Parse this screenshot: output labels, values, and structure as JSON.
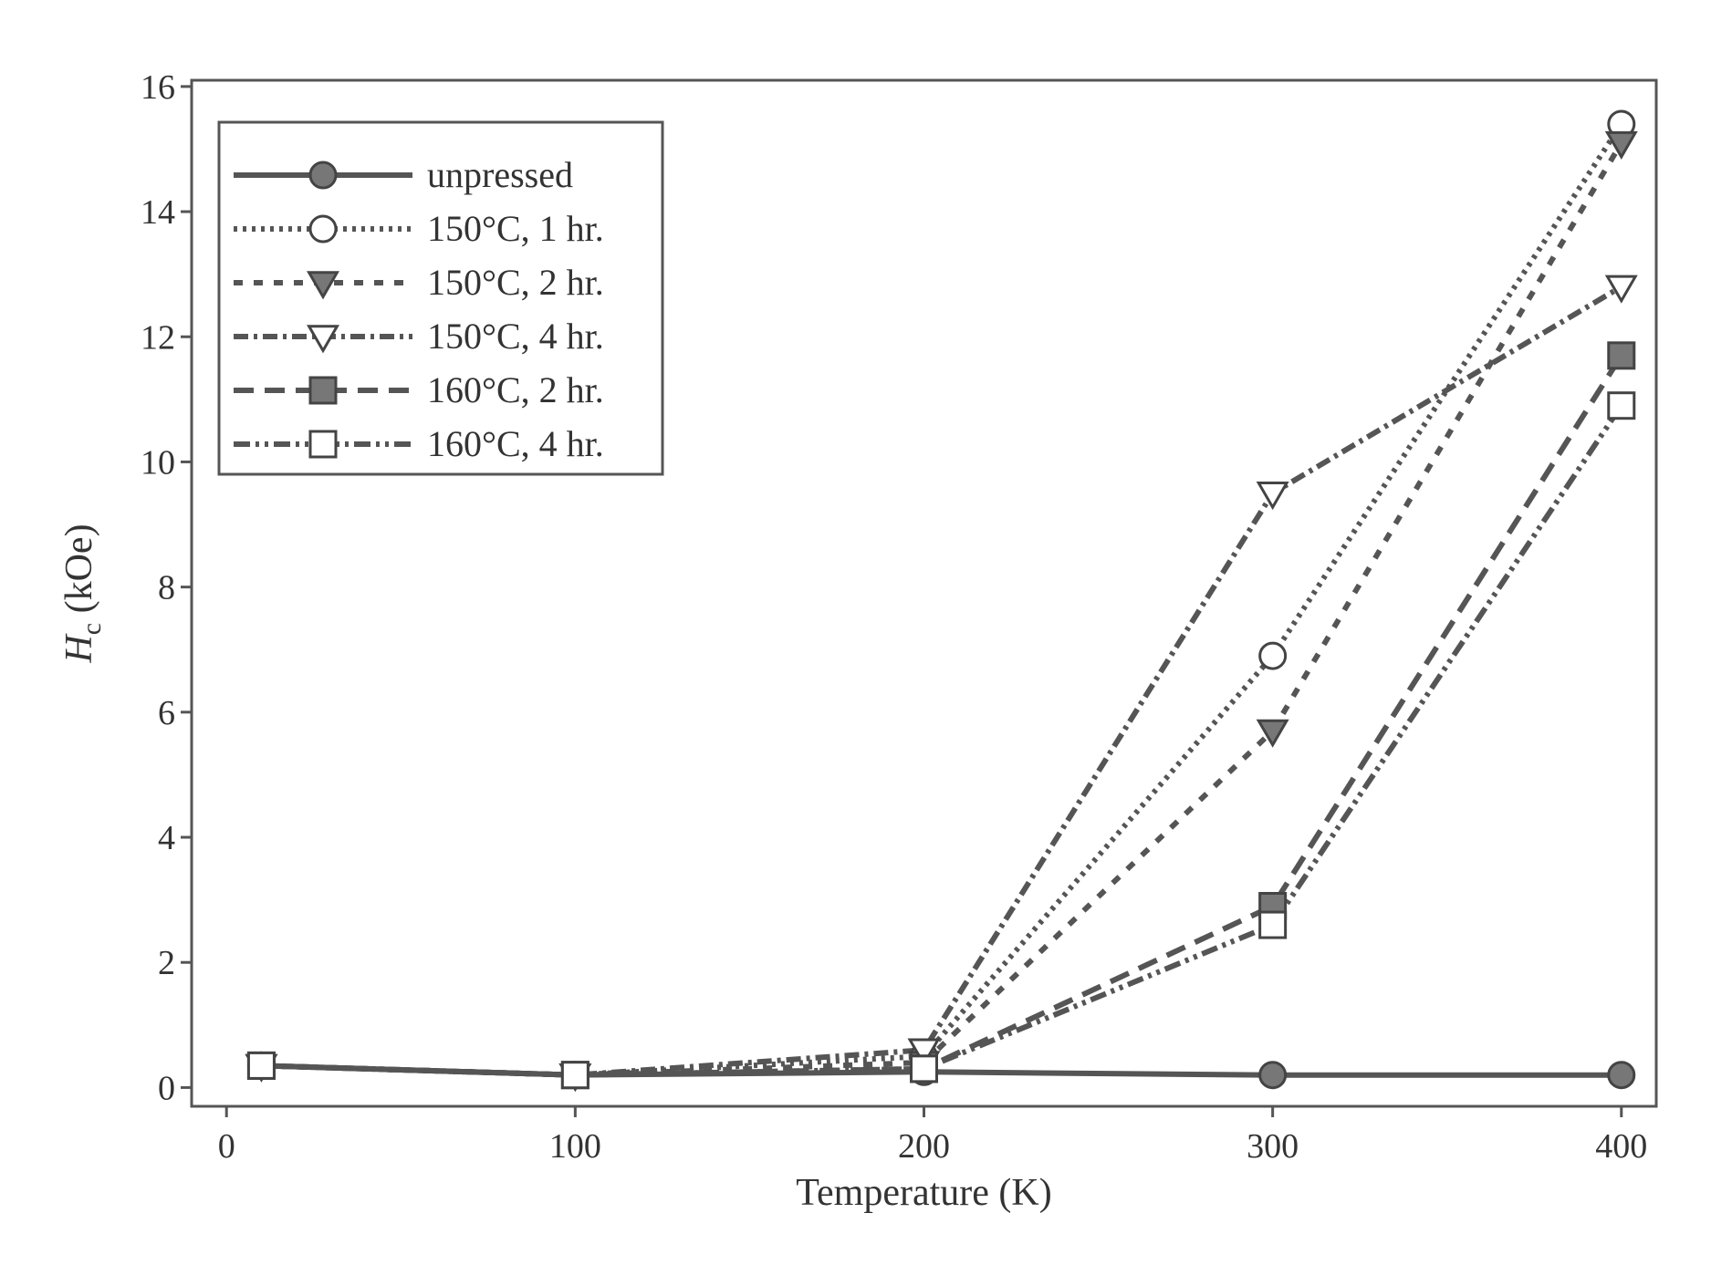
{
  "chart_data": {
    "type": "line",
    "xlabel": "Temperature (K)",
    "ylabel_main": "H",
    "ylabel_sub": "c",
    "ylabel_unit": " (kOe)",
    "xlim": [
      -10,
      410
    ],
    "ylim": [
      -0.3,
      16.1
    ],
    "xticks": [
      0,
      100,
      200,
      300,
      400
    ],
    "yticks": [
      0,
      2,
      4,
      6,
      8,
      10,
      12,
      14,
      16
    ],
    "legend_position": "top-left",
    "series": [
      {
        "name": "unpressed",
        "marker": "circle-filled",
        "dash": "solid",
        "x": [
          10,
          100,
          200,
          300,
          400
        ],
        "y": [
          0.35,
          0.2,
          0.25,
          0.2,
          0.2
        ]
      },
      {
        "name": "150°C, 1 hr.",
        "marker": "circle-open",
        "dash": "dotted",
        "x": [
          10,
          100,
          200,
          300,
          400
        ],
        "y": [
          0.35,
          0.2,
          0.5,
          6.9,
          15.4
        ]
      },
      {
        "name": "150°C, 2 hr.",
        "marker": "triangle-down-filled",
        "dash": "dashed",
        "x": [
          10,
          100,
          200,
          300,
          400
        ],
        "y": [
          0.35,
          0.2,
          0.4,
          5.7,
          15.1
        ]
      },
      {
        "name": "150°C, 4 hr.",
        "marker": "triangle-down-open",
        "dash": "dash-dot",
        "x": [
          10,
          100,
          200,
          300,
          400
        ],
        "y": [
          0.35,
          0.2,
          0.6,
          9.5,
          12.8
        ]
      },
      {
        "name": "160°C, 2 hr.",
        "marker": "square-filled",
        "dash": "long-dash",
        "x": [
          10,
          100,
          200,
          300,
          400
        ],
        "y": [
          0.35,
          0.2,
          0.3,
          2.9,
          11.7
        ]
      },
      {
        "name": "160°C, 4 hr.",
        "marker": "square-open",
        "dash": "dash-dot-dot",
        "x": [
          10,
          100,
          200,
          300,
          400
        ],
        "y": [
          0.35,
          0.2,
          0.3,
          2.6,
          10.9
        ]
      }
    ]
  }
}
